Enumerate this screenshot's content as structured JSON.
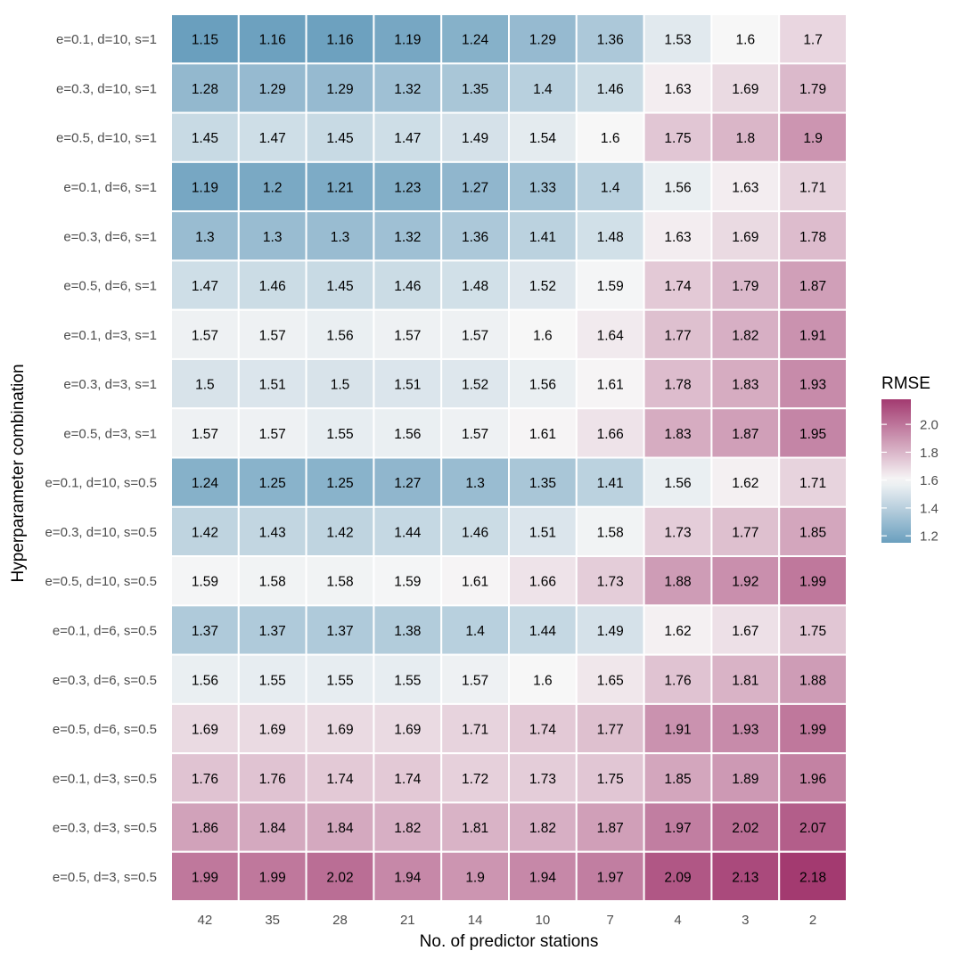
{
  "chart_data": {
    "type": "heatmap",
    "xlabel": "No. of predictor stations",
    "ylabel": "Hyperparameter combination",
    "x_categories": [
      "42",
      "35",
      "28",
      "21",
      "14",
      "10",
      "7",
      "4",
      "3",
      "2"
    ],
    "y_categories": [
      "e=0.1, d=10, s=1",
      "e=0.3, d=10, s=1",
      "e=0.5, d=10, s=1",
      "e=0.1, d=6, s=1",
      "e=0.3, d=6, s=1",
      "e=0.5, d=6, s=1",
      "e=0.1, d=3, s=1",
      "e=0.3, d=3, s=1",
      "e=0.5, d=3, s=1",
      "e=0.1, d=10, s=0.5",
      "e=0.3, d=10, s=0.5",
      "e=0.5, d=10, s=0.5",
      "e=0.1, d=6, s=0.5",
      "e=0.3, d=6, s=0.5",
      "e=0.5, d=6, s=0.5",
      "e=0.1, d=3, s=0.5",
      "e=0.3, d=3, s=0.5",
      "e=0.5, d=3, s=0.5"
    ],
    "value_labels": [
      [
        "1.15",
        "1.16",
        "1.16",
        "1.19",
        "1.24",
        "1.29",
        "1.36",
        "1.53",
        "1.6",
        "1.7"
      ],
      [
        "1.28",
        "1.29",
        "1.29",
        "1.32",
        "1.35",
        "1.4",
        "1.46",
        "1.63",
        "1.69",
        "1.79"
      ],
      [
        "1.45",
        "1.47",
        "1.45",
        "1.47",
        "1.49",
        "1.54",
        "1.6",
        "1.75",
        "1.8",
        "1.9"
      ],
      [
        "1.19",
        "1.2",
        "1.21",
        "1.23",
        "1.27",
        "1.33",
        "1.4",
        "1.56",
        "1.63",
        "1.71"
      ],
      [
        "1.3",
        "1.3",
        "1.3",
        "1.32",
        "1.36",
        "1.41",
        "1.48",
        "1.63",
        "1.69",
        "1.78"
      ],
      [
        "1.47",
        "1.46",
        "1.45",
        "1.46",
        "1.48",
        "1.52",
        "1.59",
        "1.74",
        "1.79",
        "1.87"
      ],
      [
        "1.57",
        "1.57",
        "1.56",
        "1.57",
        "1.57",
        "1.6",
        "1.64",
        "1.77",
        "1.82",
        "1.91"
      ],
      [
        "1.5",
        "1.51",
        "1.5",
        "1.51",
        "1.52",
        "1.56",
        "1.61",
        "1.78",
        "1.83",
        "1.93"
      ],
      [
        "1.57",
        "1.57",
        "1.55",
        "1.56",
        "1.57",
        "1.61",
        "1.66",
        "1.83",
        "1.87",
        "1.95"
      ],
      [
        "1.24",
        "1.25",
        "1.25",
        "1.27",
        "1.3",
        "1.35",
        "1.41",
        "1.56",
        "1.62",
        "1.71"
      ],
      [
        "1.42",
        "1.43",
        "1.42",
        "1.44",
        "1.46",
        "1.51",
        "1.58",
        "1.73",
        "1.77",
        "1.85"
      ],
      [
        "1.59",
        "1.58",
        "1.58",
        "1.59",
        "1.61",
        "1.66",
        "1.73",
        "1.88",
        "1.92",
        "1.99"
      ],
      [
        "1.37",
        "1.37",
        "1.37",
        "1.38",
        "1.4",
        "1.44",
        "1.49",
        "1.62",
        "1.67",
        "1.75"
      ],
      [
        "1.56",
        "1.55",
        "1.55",
        "1.55",
        "1.57",
        "1.6",
        "1.65",
        "1.76",
        "1.81",
        "1.88"
      ],
      [
        "1.69",
        "1.69",
        "1.69",
        "1.69",
        "1.71",
        "1.74",
        "1.77",
        "1.91",
        "1.93",
        "1.99"
      ],
      [
        "1.76",
        "1.76",
        "1.74",
        "1.74",
        "1.72",
        "1.73",
        "1.75",
        "1.85",
        "1.89",
        "1.96"
      ],
      [
        "1.86",
        "1.84",
        "1.84",
        "1.82",
        "1.81",
        "1.82",
        "1.87",
        "1.97",
        "2.02",
        "2.07"
      ],
      [
        "1.99",
        "1.99",
        "2.02",
        "1.94",
        "1.9",
        "1.94",
        "1.97",
        "2.09",
        "2.13",
        "2.18"
      ]
    ],
    "legend": {
      "title": "RMSE",
      "placement": "right",
      "ticks": [
        "2.0",
        "1.8",
        "1.6",
        "1.4",
        "1.2"
      ],
      "range": [
        1.15,
        2.18
      ]
    },
    "colors": {
      "low": "#6a9fbe",
      "mid": "#f7f7f7",
      "high": "#a33a70",
      "midpoint": 1.6,
      "cell_border": "#ffffff",
      "text": "#000000",
      "axis_text": "#4d4d4d"
    }
  }
}
